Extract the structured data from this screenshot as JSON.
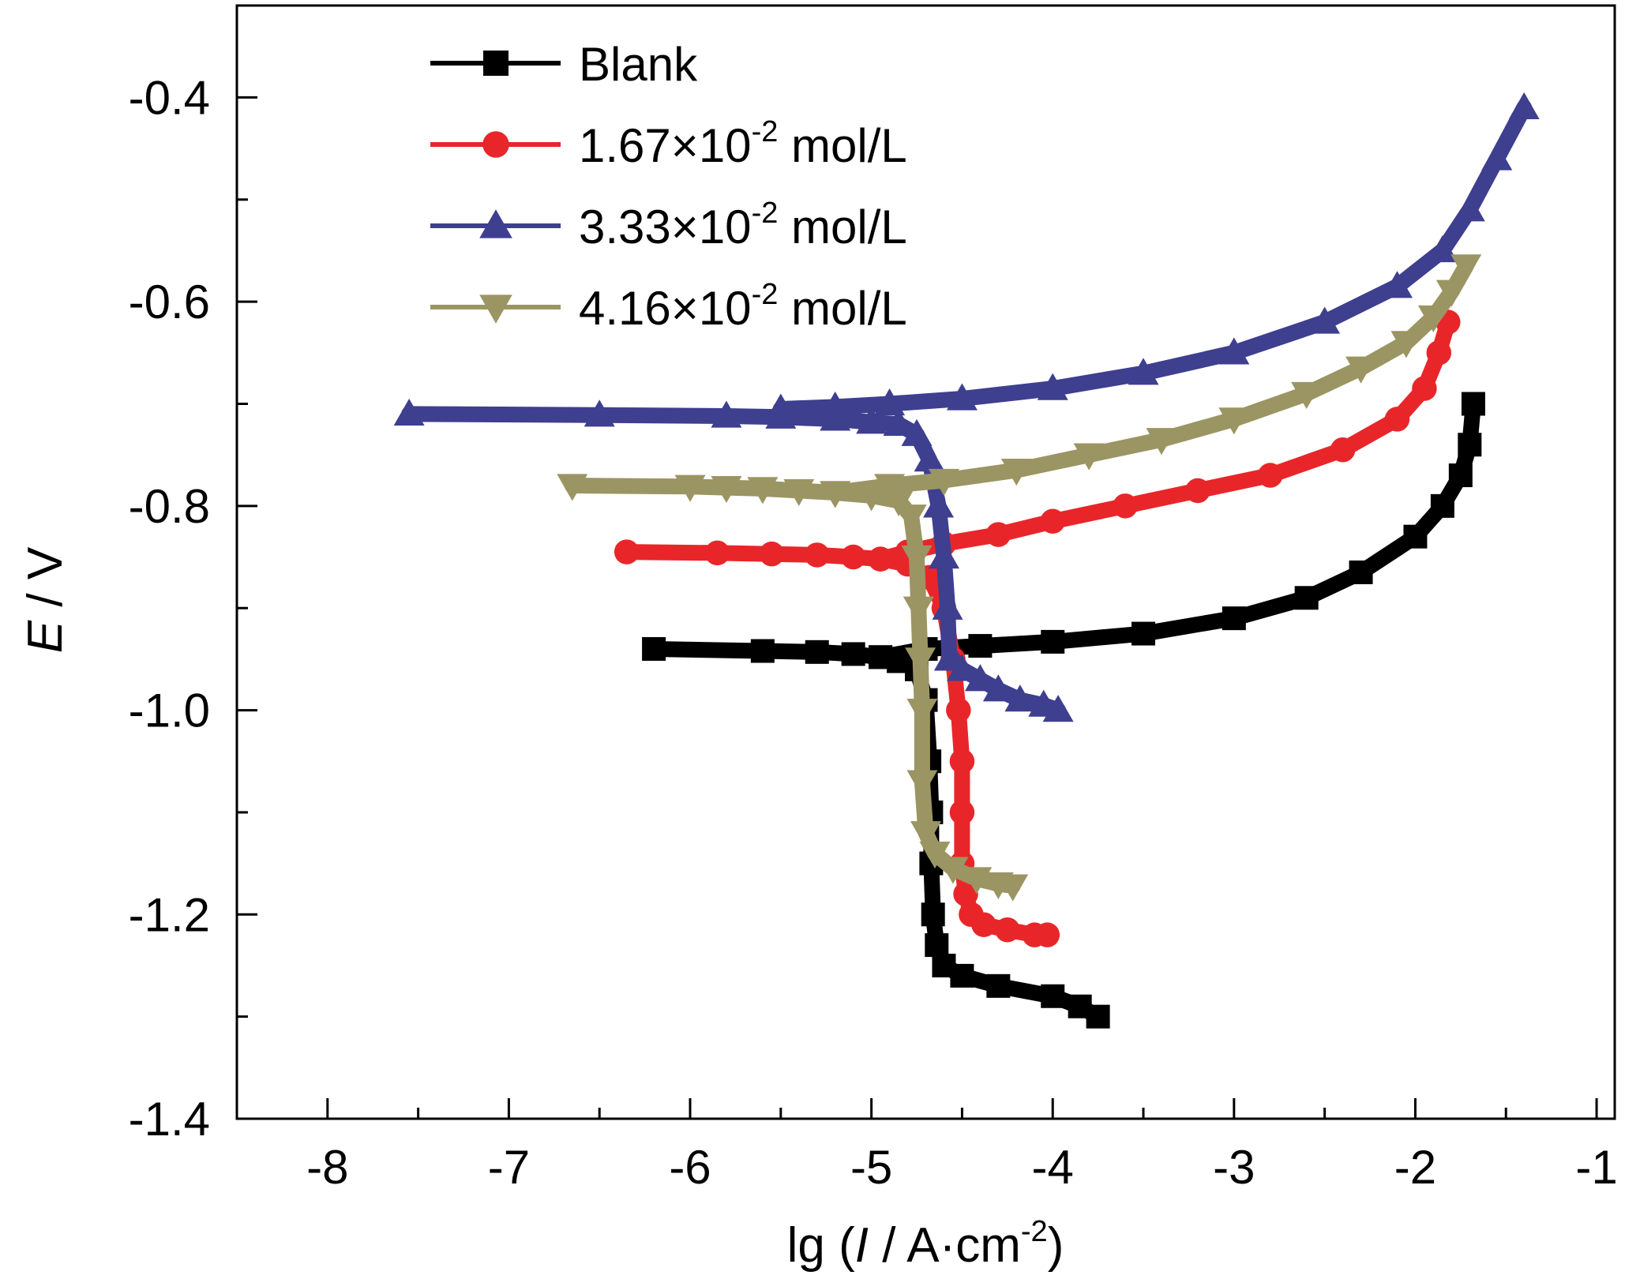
{
  "chart_data": {
    "type": "line",
    "title": "",
    "xlabel": {
      "prefix": "lg (",
      "italic": "I",
      "middle": " / A·cm",
      "sup": "-2",
      "suffix": ")"
    },
    "ylabel": {
      "italic": "E",
      "suffix": " / V"
    },
    "xlim": [
      -8.5,
      -0.9
    ],
    "ylim": [
      -1.4,
      -0.31
    ],
    "xticks": [
      -8,
      -7,
      -6,
      -5,
      -4,
      -3,
      -2,
      -1
    ],
    "xtick_labels": [
      "-8",
      "-7",
      "-6",
      "-5",
      "-4",
      "-3",
      "-2",
      "-1"
    ],
    "yticks": [
      -1.4,
      -1.2,
      -1.0,
      -0.8,
      -0.6,
      -0.4
    ],
    "ytick_labels": [
      "-1.4",
      "-1.2",
      "-1.0",
      "-0.8",
      "-0.6",
      "-0.4"
    ],
    "grid": false,
    "legend_position": "top-left",
    "series": [
      {
        "name": "Blank",
        "legend": {
          "main": "Blank",
          "sup": "",
          "unit": ""
        },
        "color": "#000000",
        "marker": "square",
        "branches": [
          {
            "x": [
              -6.2,
              -5.6,
              -5.3,
              -5.1,
              -4.95,
              -4.85,
              -4.75,
              -4.7,
              -4.68,
              -4.67,
              -4.67,
              -4.66,
              -4.64,
              -4.6,
              -4.5,
              -4.3,
              -4.0,
              -3.85,
              -3.75
            ],
            "y": [
              -0.94,
              -0.942,
              -0.943,
              -0.945,
              -0.948,
              -0.952,
              -0.96,
              -0.99,
              -1.05,
              -1.1,
              -1.15,
              -1.2,
              -1.23,
              -1.25,
              -1.26,
              -1.27,
              -1.28,
              -1.29,
              -1.3
            ]
          },
          {
            "x": [
              -4.95,
              -4.7,
              -4.4,
              -4.0,
              -3.5,
              -3.0,
              -2.6,
              -2.3,
              -2.0,
              -1.85,
              -1.75,
              -1.7,
              -1.68
            ],
            "y": [
              -0.948,
              -0.94,
              -0.937,
              -0.933,
              -0.925,
              -0.91,
              -0.89,
              -0.865,
              -0.83,
              -0.8,
              -0.77,
              -0.74,
              -0.7
            ]
          }
        ]
      },
      {
        "name": "1.67×10-2 mol/L",
        "legend": {
          "main": "1.67×10",
          "sup": "-2",
          "unit": " mol/L"
        },
        "color": "#e8262a",
        "marker": "circle",
        "branches": [
          {
            "x": [
              -6.35,
              -5.85,
              -5.55,
              -5.3,
              -5.1,
              -4.95,
              -4.8,
              -4.68,
              -4.6,
              -4.55,
              -4.52,
              -4.5,
              -4.5,
              -4.5,
              -4.48,
              -4.45,
              -4.38,
              -4.25,
              -4.1,
              -4.03
            ],
            "y": [
              -0.845,
              -0.846,
              -0.847,
              -0.848,
              -0.85,
              -0.852,
              -0.857,
              -0.87,
              -0.9,
              -0.95,
              -1.0,
              -1.05,
              -1.1,
              -1.15,
              -1.18,
              -1.2,
              -1.21,
              -1.215,
              -1.22,
              -1.22
            ]
          },
          {
            "x": [
              -4.95,
              -4.8,
              -4.6,
              -4.3,
              -4.0,
              -3.6,
              -3.2,
              -2.8,
              -2.4,
              -2.1,
              -1.95,
              -1.87,
              -1.82
            ],
            "y": [
              -0.852,
              -0.845,
              -0.837,
              -0.828,
              -0.815,
              -0.8,
              -0.785,
              -0.77,
              -0.745,
              -0.715,
              -0.685,
              -0.65,
              -0.62
            ]
          }
        ]
      },
      {
        "name": "3.33×10-2 mol/L",
        "legend": {
          "main": "3.33×10",
          "sup": "-2",
          "unit": " mol/L"
        },
        "color": "#3e3f8f",
        "marker": "triangle-up",
        "branches": [
          {
            "x": [
              -7.55,
              -6.5,
              -5.8,
              -5.5,
              -5.2,
              -5.0,
              -4.85,
              -4.75,
              -4.68,
              -4.63,
              -4.6,
              -4.58,
              -4.57,
              -4.55,
              -4.5,
              -4.4,
              -4.3,
              -4.18,
              -4.05,
              -3.97
            ],
            "y": [
              -0.71,
              -0.711,
              -0.712,
              -0.713,
              -0.715,
              -0.718,
              -0.72,
              -0.73,
              -0.755,
              -0.8,
              -0.85,
              -0.9,
              -0.95,
              -0.95,
              -0.96,
              -0.97,
              -0.98,
              -0.99,
              -0.995,
              -1.0
            ]
          },
          {
            "x": [
              -5.5,
              -5.2,
              -4.9,
              -4.5,
              -4.0,
              -3.5,
              -3.0,
              -2.5,
              -2.1,
              -1.85,
              -1.7,
              -1.55,
              -1.4
            ],
            "y": [
              -0.705,
              -0.703,
              -0.7,
              -0.695,
              -0.685,
              -0.67,
              -0.65,
              -0.62,
              -0.585,
              -0.55,
              -0.51,
              -0.46,
              -0.41
            ]
          }
        ]
      },
      {
        "name": "4.16×10-2 mol/L",
        "legend": {
          "main": "4.16×10",
          "sup": "-2",
          "unit": " mol/L"
        },
        "color": "#9b9563",
        "marker": "triangle-down",
        "branches": [
          {
            "x": [
              -6.65,
              -6.0,
              -5.8,
              -5.6,
              -5.4,
              -5.2,
              -5.0,
              -4.85,
              -4.78,
              -4.75,
              -4.74,
              -4.73,
              -4.72,
              -4.72,
              -4.7,
              -4.65,
              -4.55,
              -4.42,
              -4.3,
              -4.22
            ],
            "y": [
              -0.78,
              -0.781,
              -0.782,
              -0.783,
              -0.785,
              -0.787,
              -0.79,
              -0.795,
              -0.81,
              -0.85,
              -0.9,
              -0.95,
              -1.0,
              -1.07,
              -1.12,
              -1.14,
              -1.155,
              -1.165,
              -1.17,
              -1.172
            ]
          },
          {
            "x": [
              -5.2,
              -4.9,
              -4.6,
              -4.2,
              -3.8,
              -3.4,
              -3.0,
              -2.6,
              -2.3,
              -2.05,
              -1.9,
              -1.8,
              -1.72
            ],
            "y": [
              -0.787,
              -0.78,
              -0.775,
              -0.765,
              -0.75,
              -0.735,
              -0.715,
              -0.69,
              -0.665,
              -0.64,
              -0.615,
              -0.59,
              -0.565
            ]
          }
        ]
      }
    ]
  }
}
